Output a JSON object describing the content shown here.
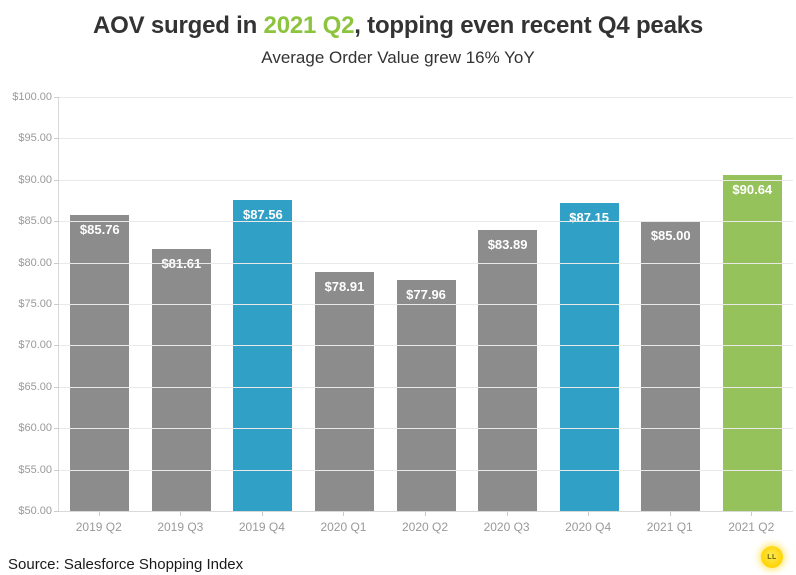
{
  "title": {
    "prefix": "AOV surged in ",
    "highlight": "2021 Q2",
    "suffix": ", topping even recent Q4 peaks"
  },
  "subtitle": "Average Order Value grew 16% YoY",
  "source": "Source: Salesforce Shopping Index",
  "logo_text": "LL",
  "colors": {
    "gray": "#8c8c8c",
    "blue": "#31a0c6",
    "green": "#95c25a",
    "title_highlight": "#8cc43e",
    "grid": "#e9e9e9",
    "axis": "#d9d9d9",
    "tick_label": "#999999"
  },
  "y_axis": {
    "ticks": [
      "$100.00",
      "$95.00",
      "$90.00",
      "$85.00",
      "$80.00",
      "$75.00",
      "$70.00",
      "$65.00",
      "$60.00",
      "$55.00",
      "$50.00"
    ],
    "min": 50,
    "max": 100
  },
  "chart_data": {
    "type": "bar",
    "title": "AOV surged in 2021 Q2, topping even recent Q4 peaks",
    "subtitle": "Average Order Value grew 16% YoY",
    "categories": [
      "2019 Q2",
      "2019 Q3",
      "2019 Q4",
      "2020 Q1",
      "2020 Q2",
      "2020 Q3",
      "2020 Q4",
      "2021 Q1",
      "2021 Q2"
    ],
    "values": [
      85.76,
      81.61,
      87.56,
      78.91,
      77.96,
      83.89,
      87.15,
      85.0,
      90.64
    ],
    "labels": [
      "$85.76",
      "$81.61",
      "$87.56",
      "$78.91",
      "$77.96",
      "$83.89",
      "$87.15",
      "$85.00",
      "$90.64"
    ],
    "bar_colors": [
      "gray",
      "gray",
      "blue",
      "gray",
      "gray",
      "gray",
      "blue",
      "gray",
      "green"
    ],
    "xlabel": "",
    "ylabel": "",
    "ylim": [
      50,
      100
    ],
    "grid": true,
    "legend": "none"
  }
}
